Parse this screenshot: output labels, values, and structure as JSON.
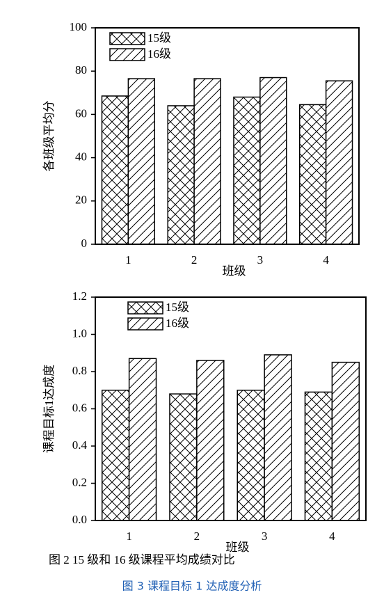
{
  "chart_data": [
    {
      "type": "bar",
      "xlabel": "班级",
      "ylabel": "各班级平均分",
      "categories": [
        "1",
        "2",
        "3",
        "4"
      ],
      "series": [
        {
          "name": "15级",
          "color": "#ffffff",
          "pattern": "crosshatch",
          "values": [
            68.5,
            64,
            68,
            64.5
          ]
        },
        {
          "name": "16级",
          "color": "#ffffff",
          "pattern": "diagonal",
          "values": [
            76.5,
            76.5,
            77,
            75.5
          ]
        }
      ],
      "ylim": [
        0,
        100
      ],
      "yticks": [
        0,
        20,
        40,
        60,
        80,
        100
      ],
      "legend": "upper left"
    },
    {
      "type": "bar",
      "xlabel": "班级",
      "ylabel": "课程目标1达成度",
      "categories": [
        "1",
        "2",
        "3",
        "4"
      ],
      "series": [
        {
          "name": "15级",
          "color": "#ffffff",
          "pattern": "crosshatch",
          "values": [
            0.7,
            0.68,
            0.7,
            0.69
          ]
        },
        {
          "name": "16级",
          "color": "#ffffff",
          "pattern": "diagonal",
          "values": [
            0.87,
            0.86,
            0.89,
            0.85
          ]
        }
      ],
      "ylim": [
        0,
        1.2
      ],
      "yticks": [
        {
          "value": 0,
          "label": "0.0"
        },
        0.2,
        0.4,
        0.6,
        0.8,
        {
          "value": 1,
          "label": "1.0"
        },
        1.2
      ],
      "legend": "upper left"
    }
  ],
  "captions": [
    "图 2 15 级和 16 级课程平均成绩对比",
    "图 3 课程目标 1 达成度分析"
  ]
}
